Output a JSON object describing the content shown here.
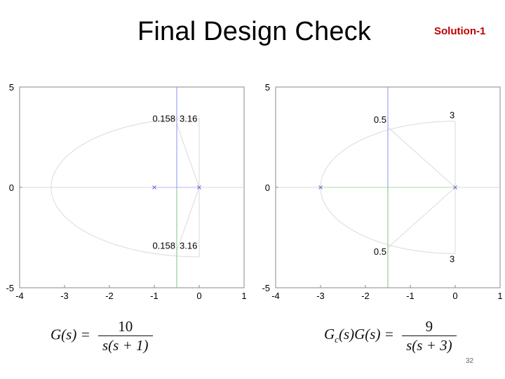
{
  "slide": {
    "title": "Final Design Check",
    "badge": "Solution-1",
    "page_number": "32",
    "eq_left_lhs": "G(s) =",
    "eq_left_num": "10",
    "eq_left_den": "s(s + 1)",
    "eq_right_lhs": "G_c(s)G(s) =",
    "eq_right_num": "9",
    "eq_right_den": "s(s + 3)"
  },
  "chart_data": [
    {
      "type": "root-locus",
      "xlim": [
        -4,
        1
      ],
      "ylim": [
        -5,
        5
      ],
      "xticks": [
        "-4",
        "-3",
        "-2",
        "-1",
        "0",
        "1"
      ],
      "yticks": [
        "5",
        "0",
        "-5"
      ],
      "poles": [
        [
          -1,
          0
        ],
        [
          0,
          0
        ]
      ],
      "locus_branch_x": -0.5,
      "damping_annotations": [
        {
          "x": -0.5,
          "y": 3.16,
          "labels": [
            "0.158",
            "3.16"
          ]
        },
        {
          "x": -0.5,
          "y": -3.16,
          "labels": [
            "0.158",
            "3.16"
          ]
        }
      ]
    },
    {
      "type": "root-locus",
      "xlim": [
        -4,
        1
      ],
      "ylim": [
        -5,
        5
      ],
      "xticks": [
        "-4",
        "-3",
        "-2",
        "-1",
        "0",
        "1"
      ],
      "yticks": [
        "5",
        "0",
        "-5"
      ],
      "poles": [
        [
          -3,
          0
        ],
        [
          0,
          0
        ]
      ],
      "locus_branch_x": -1.5,
      "damping_annotations": [
        {
          "x": -1.5,
          "y": 3,
          "labels": [
            "0.5",
            "3"
          ]
        },
        {
          "x": -1.5,
          "y": -3,
          "labels": [
            "0.5",
            "3"
          ]
        }
      ]
    }
  ]
}
